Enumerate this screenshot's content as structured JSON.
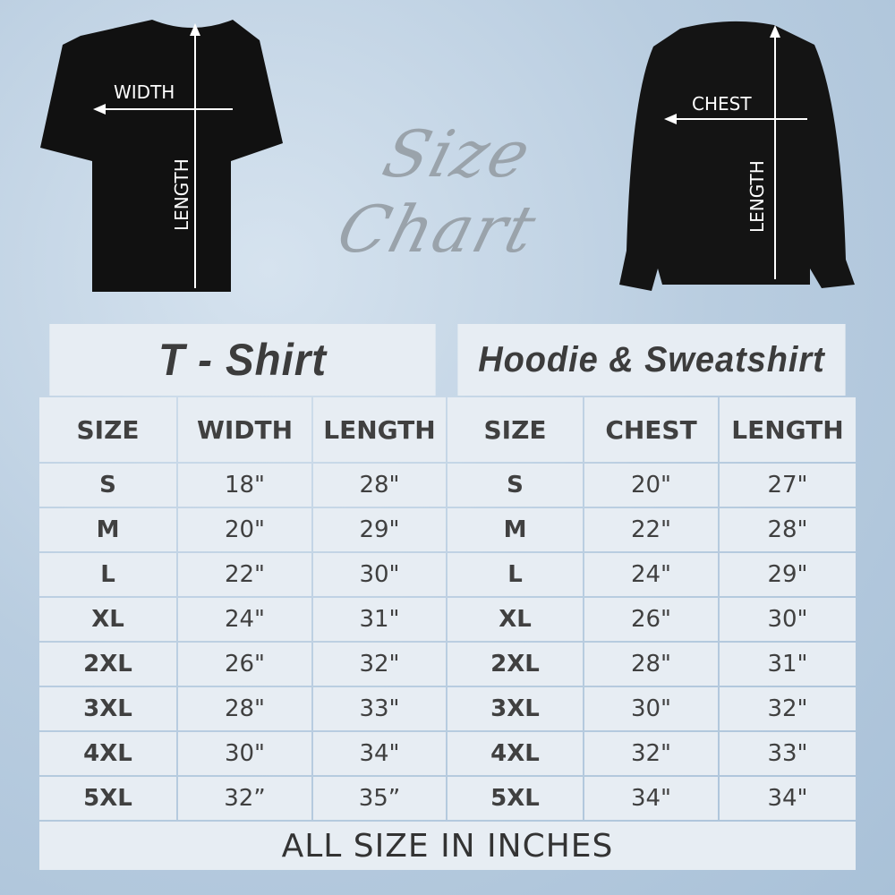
{
  "title": "Size Chart",
  "tshirt_labels": {
    "width": "WIDTH",
    "length": "LENGTH"
  },
  "hoodie_labels": {
    "chest": "CHEST",
    "length": "LENGTH"
  },
  "tshirt": {
    "heading": "T - Shirt",
    "columns": [
      "SIZE",
      "WIDTH",
      "LENGTH"
    ],
    "rows": [
      [
        "S",
        "18\"",
        "28\""
      ],
      [
        "M",
        "20\"",
        "29\""
      ],
      [
        "L",
        "22\"",
        "30\""
      ],
      [
        "XL",
        "24\"",
        "31\""
      ],
      [
        "2XL",
        "26\"",
        "32\""
      ],
      [
        "3XL",
        "28\"",
        "33\""
      ],
      [
        "4XL",
        "30\"",
        "34\""
      ],
      [
        "5XL",
        "32”",
        "35”"
      ]
    ]
  },
  "hoodie": {
    "heading": "Hoodie & Sweatshirt",
    "columns": [
      "SIZE",
      "CHEST",
      "LENGTH"
    ],
    "rows": [
      [
        "S",
        "20\"",
        "27\""
      ],
      [
        "M",
        "22\"",
        "28\""
      ],
      [
        "L",
        "24\"",
        "29\""
      ],
      [
        "XL",
        "26\"",
        "30\""
      ],
      [
        "2XL",
        "28\"",
        "31\""
      ],
      [
        "3XL",
        "30\"",
        "32\""
      ],
      [
        "4XL",
        "32\"",
        "33\""
      ],
      [
        "5XL",
        "34\"",
        "34\""
      ]
    ]
  },
  "footer": "ALL SIZE IN INCHES",
  "colors": {
    "cell": "#e7edf3",
    "border": "#c9d6e3",
    "text": "#404040",
    "garment": "#111111"
  }
}
